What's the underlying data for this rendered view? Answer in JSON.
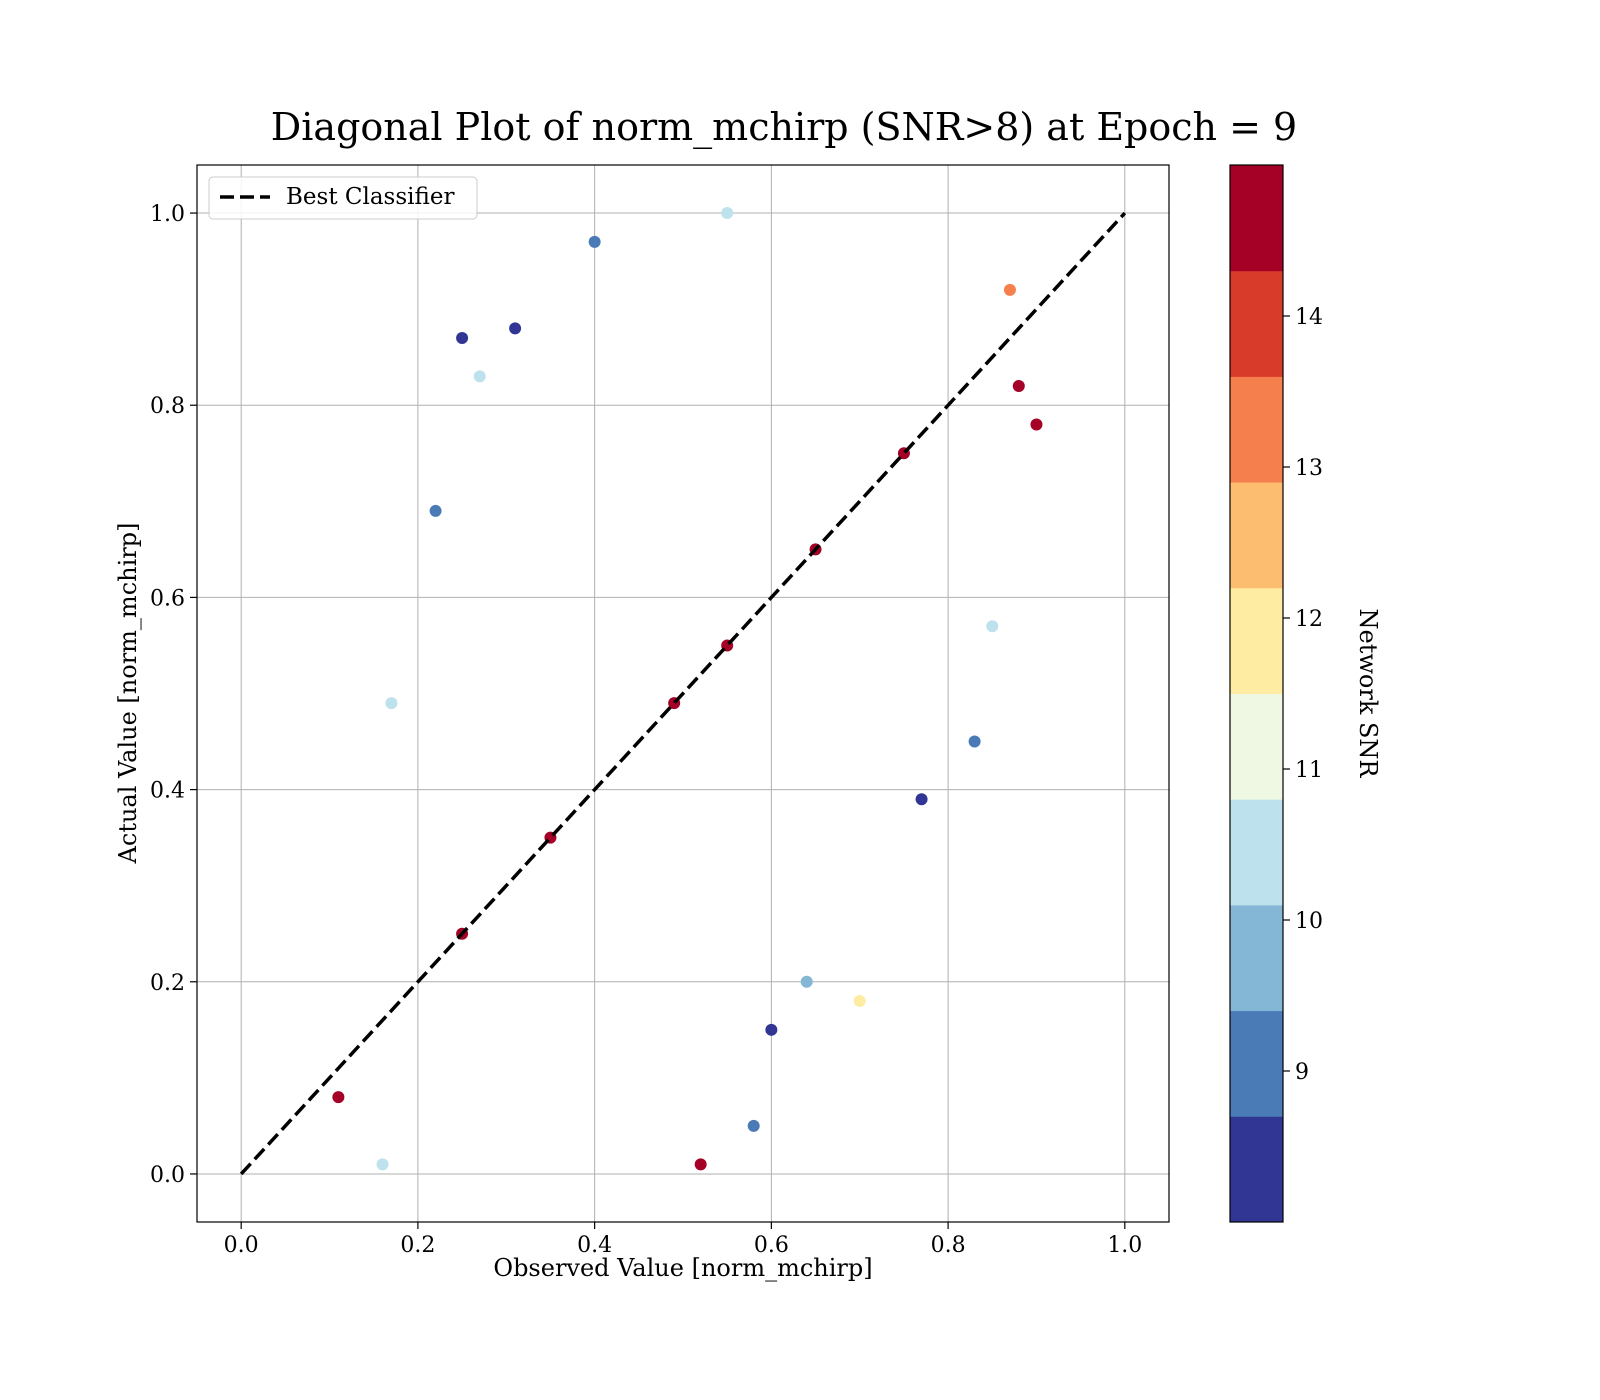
{
  "chart_data": {
    "type": "scatter",
    "title": "Diagonal Plot of norm_mchirp (SNR>8) at Epoch = 9",
    "xlabel": "Observed Value [norm_mchirp]",
    "ylabel": "Actual Value [norm_mchirp]",
    "xlim": [
      -0.05,
      1.05
    ],
    "ylim": [
      -0.05,
      1.05
    ],
    "xticks": [
      "0.0",
      "0.2",
      "0.4",
      "0.6",
      "0.8",
      "1.0"
    ],
    "yticks": [
      "0.0",
      "0.2",
      "0.4",
      "0.6",
      "0.8",
      "1.0"
    ],
    "grid": true,
    "legend": {
      "location": "upper-left",
      "entries": [
        {
          "label": "Best Classifier",
          "style": "dashed",
          "color": "#000000"
        }
      ]
    },
    "reference_line": {
      "x": [
        0,
        1
      ],
      "y": [
        0,
        1
      ]
    },
    "colorbar": {
      "label": "Network SNR",
      "min": 8,
      "max": 15,
      "ticks": [
        "9",
        "10",
        "11",
        "12",
        "13",
        "14"
      ],
      "colors": [
        "#313695",
        "#4a7bb7",
        "#84b6d6",
        "#bde2ed",
        "#eff8e3",
        "#fdeca2",
        "#fdbd71",
        "#f67f4e",
        "#d93b2b",
        "#a50026"
      ]
    },
    "points": [
      {
        "x": 0.9,
        "y": 0.78,
        "snr": 14.8
      },
      {
        "x": 0.83,
        "y": 0.45,
        "snr": 9.2
      },
      {
        "x": 0.77,
        "y": 0.39,
        "snr": 8.2
      },
      {
        "x": 0.7,
        "y": 0.18,
        "snr": 12.2
      },
      {
        "x": 0.6,
        "y": 0.15,
        "snr": 8.3
      },
      {
        "x": 0.58,
        "y": 0.05,
        "snr": 9.3
      },
      {
        "x": 0.52,
        "y": 0.01,
        "snr": 14.8
      },
      {
        "x": 0.55,
        "y": 1.0,
        "snr": 10.5
      },
      {
        "x": 0.25,
        "y": 0.87,
        "snr": 8.2
      },
      {
        "x": 0.31,
        "y": 0.88,
        "snr": 8.2
      },
      {
        "x": 0.27,
        "y": 0.83,
        "snr": 10.2
      },
      {
        "x": 0.22,
        "y": 0.69,
        "snr": 9.3
      },
      {
        "x": 0.17,
        "y": 0.49,
        "snr": 10.2
      },
      {
        "x": 0.11,
        "y": 0.08,
        "snr": 14.8
      },
      {
        "x": 0.16,
        "y": 0.01,
        "snr": 10.2
      },
      {
        "x": 0.85,
        "y": 0.57,
        "snr": 10.3
      },
      {
        "x": 0.87,
        "y": 0.92,
        "snr": 13.2
      },
      {
        "x": 0.88,
        "y": 0.82,
        "snr": 14.8
      },
      {
        "x": 0.64,
        "y": 0.2,
        "snr": 9.8
      },
      {
        "x": 0.4,
        "y": 0.97,
        "snr": 9.2
      },
      {
        "x": 0.49,
        "y": 0.49,
        "snr": 14.8
      },
      {
        "x": 0.55,
        "y": 0.55,
        "snr": 14.8
      },
      {
        "x": 0.35,
        "y": 0.35,
        "snr": 14.8
      },
      {
        "x": 0.65,
        "y": 0.65,
        "snr": 14.8
      },
      {
        "x": 0.75,
        "y": 0.75,
        "snr": 14.8
      },
      {
        "x": 0.25,
        "y": 0.25,
        "snr": 14.8
      }
    ]
  }
}
